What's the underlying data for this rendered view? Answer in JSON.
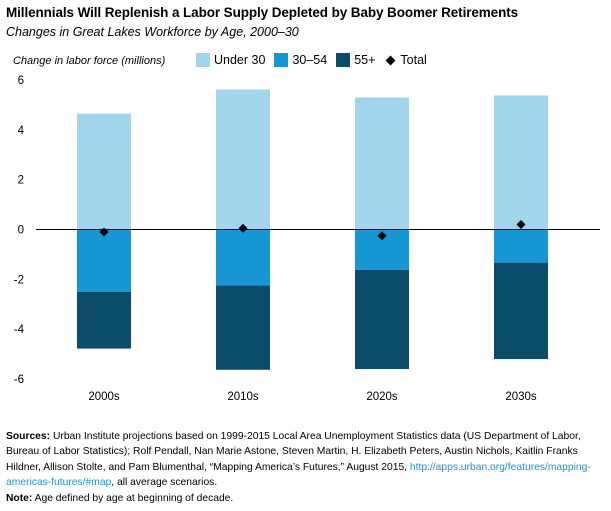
{
  "title": "Millennials Will Replenish a Labor Supply Depleted by Baby Boomer Retirements",
  "subtitle": "Changes in Great Lakes Workforce by Age, 2000–30",
  "chart_data": {
    "type": "bar",
    "stacked": true,
    "ylabel": "Change in labor force (millions)",
    "ylim": [
      -6,
      6
    ],
    "yticks": [
      6,
      4,
      2,
      0,
      -2,
      -4,
      -6
    ],
    "categories": [
      "2000s",
      "2010s",
      "2020s",
      "2030s"
    ],
    "series": [
      {
        "name": "Under 30",
        "color": "#a2d4ec",
        "values": [
          4.65,
          5.62,
          5.3,
          5.38
        ]
      },
      {
        "name": "30–54",
        "color": "#1696d2",
        "values": [
          -2.5,
          -2.25,
          -1.62,
          -1.33
        ]
      },
      {
        "name": "55+",
        "color": "#0a4c6a",
        "values": [
          -2.28,
          -3.38,
          -3.98,
          -3.87
        ]
      }
    ],
    "markers": {
      "name": "Total",
      "color": "#000000",
      "values": [
        -0.1,
        0.05,
        -0.25,
        0.2
      ]
    },
    "legend_position": "top",
    "grid": false
  },
  "footer": {
    "sources_label": "Sources:",
    "sources_text": "Urban Institute projections based on 1999-2015 Local Area Unemployment Statistics data (US Department of Labor, Bureau of Labor Statistics); Rolf Pendall, Nan Marie Astone, Steven Martin, H. Elizabeth Peters, Austin Nichols, Kaitlin Franks Hildner, Allison Stolte, and Pam Blumenthal, “Mapping America’s Futures,” August 2015,",
    "sources_link": "http://apps.urban.org/features/mapping-americas-futures/#map",
    "sources_tail": ", all average scenarios.",
    "note_label": "Note:",
    "note_text": "Age defined by age at beginning of decade."
  }
}
